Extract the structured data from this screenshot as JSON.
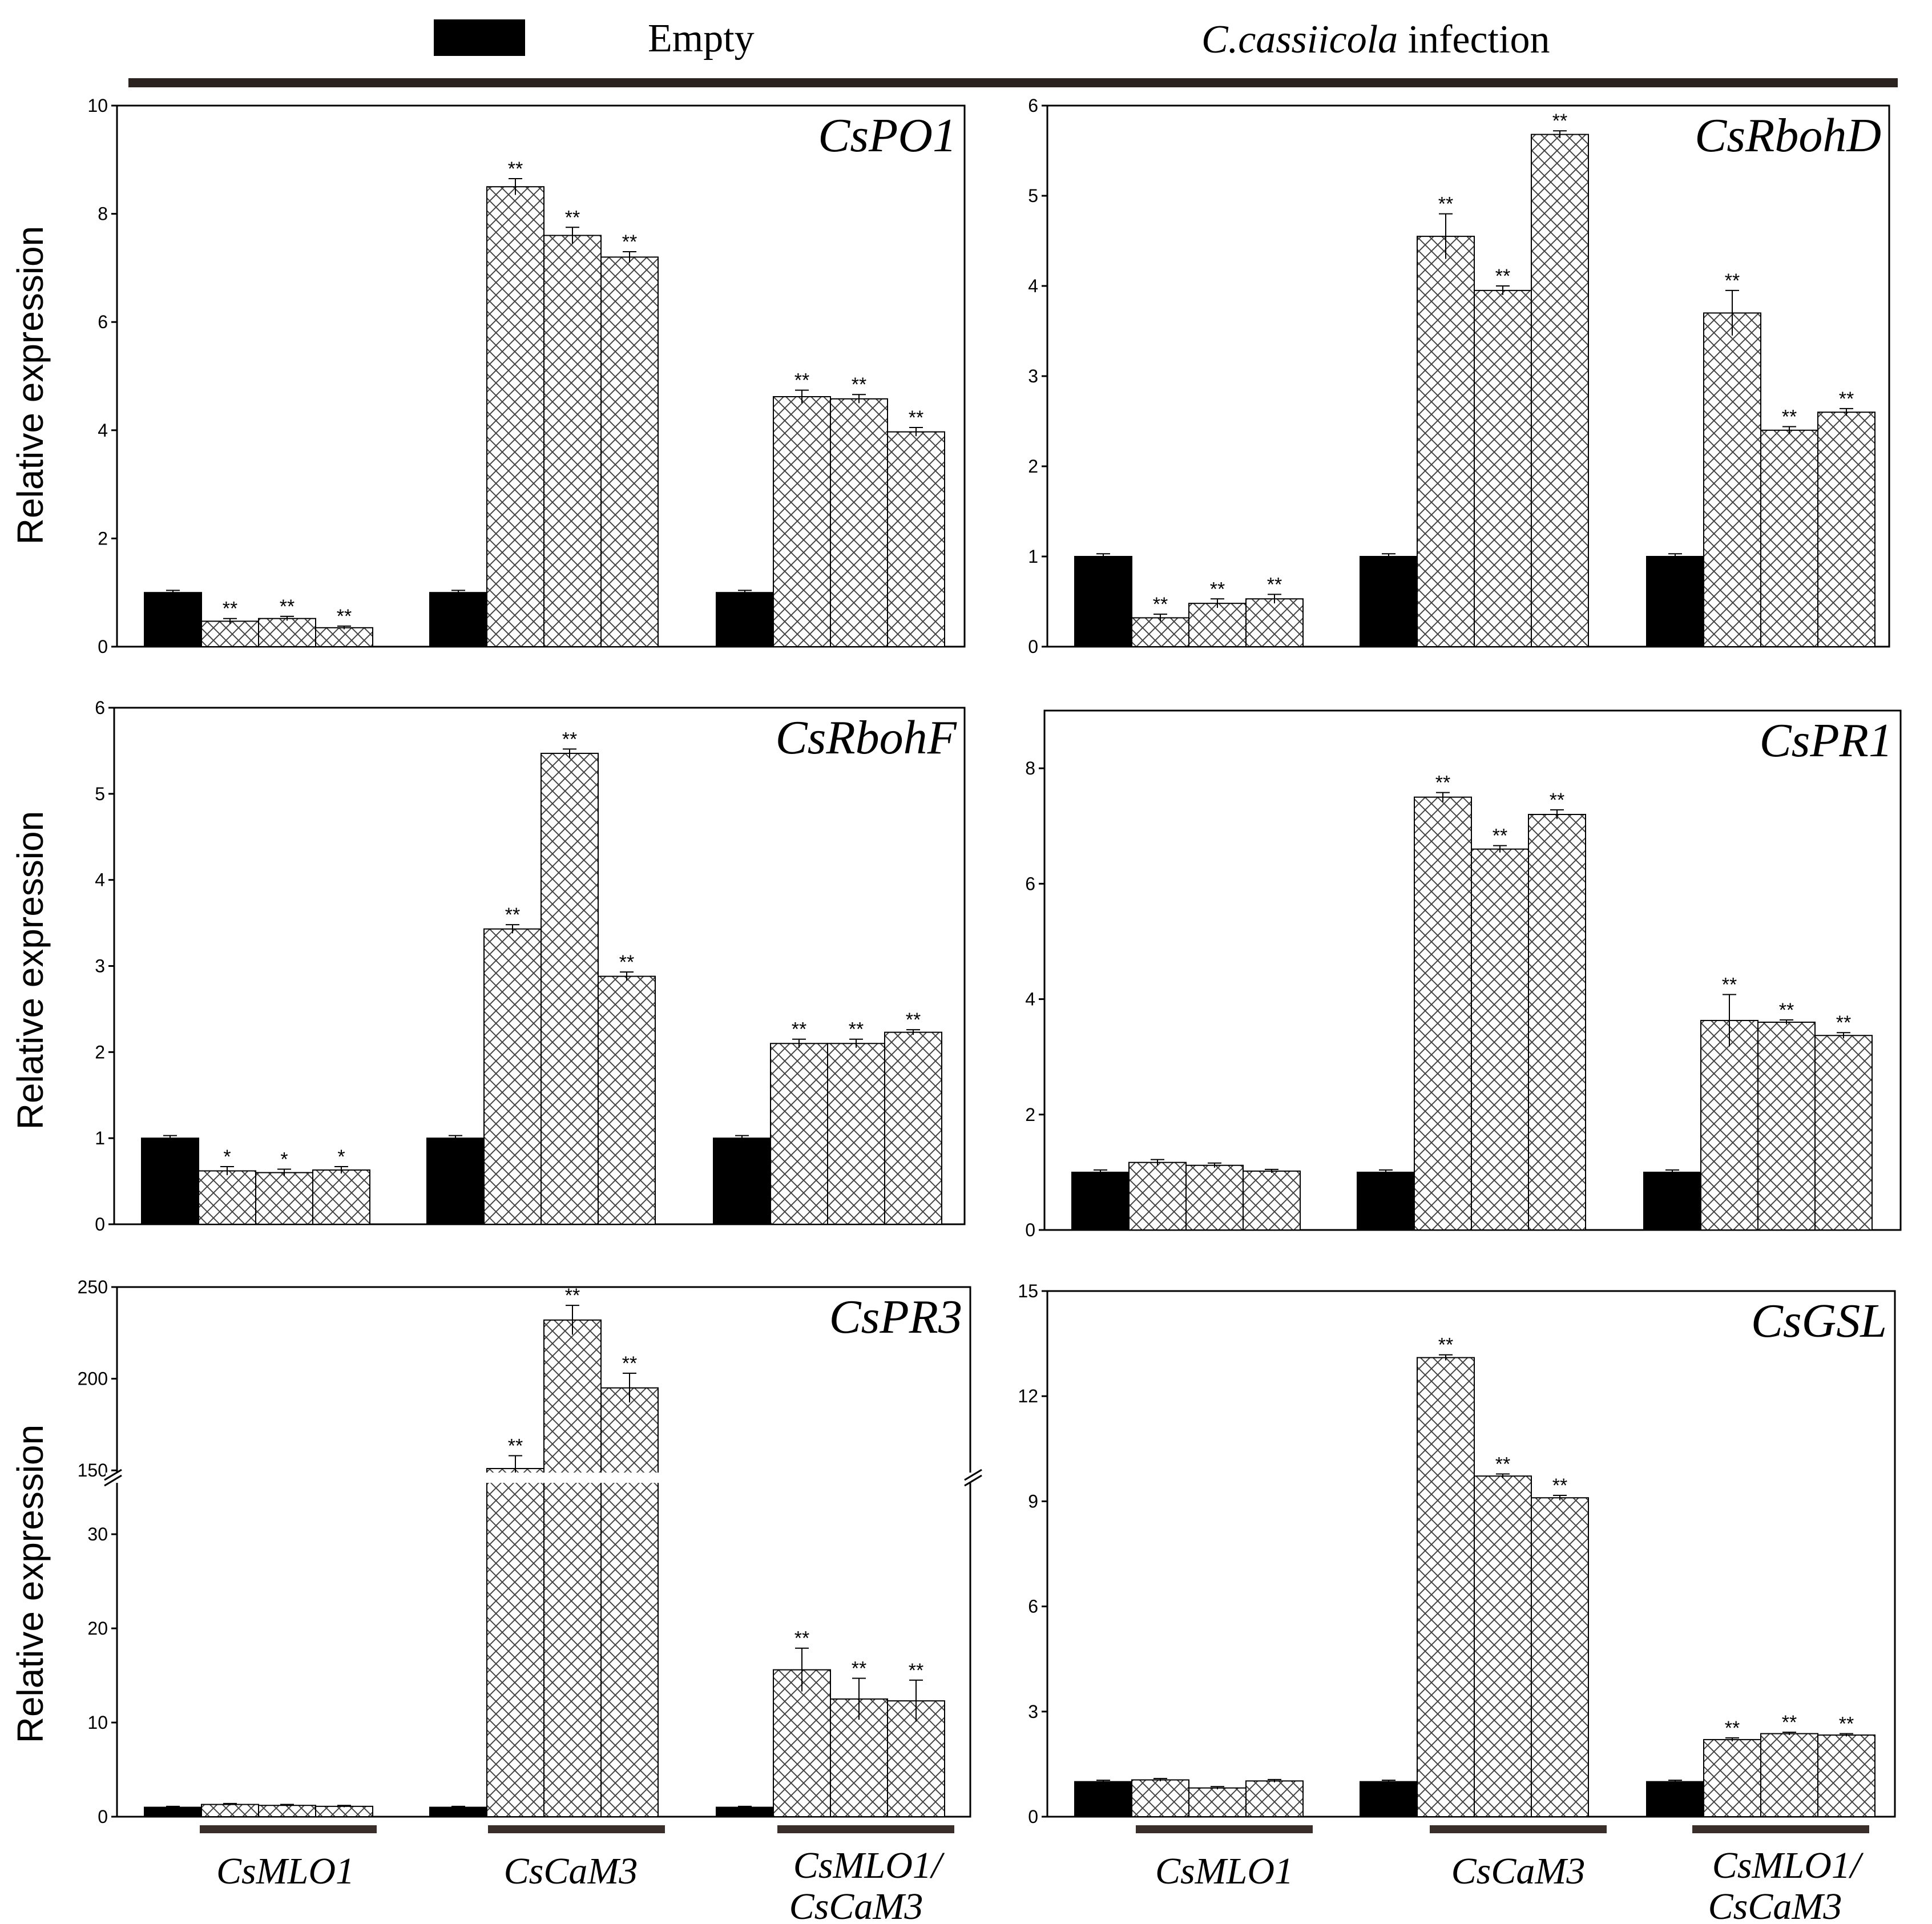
{
  "legend": {
    "empty_label": "Empty",
    "infection_prefix": "C.cassiicola",
    "infection_suffix": " infection",
    "empty_color": "#000000"
  },
  "ylabel": "Relative expression",
  "groups_left": [
    "CsMLO1",
    "CsCaM3",
    "CsMLO1/",
    "CsCaM3"
  ],
  "groups_right": [
    "CsMLO1",
    "CsCaM3",
    "CsMLO1/",
    "CsCaM3"
  ],
  "chart_data": [
    {
      "type": "bar",
      "title": "CsPO1",
      "ylim": [
        0,
        10
      ],
      "yticks": [
        "0",
        "2",
        "4",
        "6",
        "8",
        "10"
      ],
      "tick_values": [
        0,
        2,
        4,
        6,
        8,
        10
      ],
      "groups": [
        "CsMLO1",
        "CsCaM3",
        "CsMLO1/CsCaM3"
      ],
      "values": [
        [
          1.0,
          0.47,
          0.52,
          0.35
        ],
        [
          1.0,
          8.5,
          7.6,
          7.2
        ],
        [
          1.0,
          4.62,
          4.58,
          3.97
        ]
      ],
      "errors": [
        [
          0.04,
          0.05,
          0.04,
          0.03
        ],
        [
          0.04,
          0.15,
          0.15,
          0.1
        ],
        [
          0.04,
          0.12,
          0.08,
          0.08
        ]
      ],
      "stars": [
        [
          "",
          "**",
          "**",
          "**"
        ],
        [
          "",
          "**",
          "**",
          "**"
        ],
        [
          "",
          "**",
          "**",
          "**"
        ]
      ]
    },
    {
      "type": "bar",
      "title": "CsRbohD",
      "ylim": [
        0,
        6
      ],
      "yticks": [
        "0",
        "1",
        "2",
        "3",
        "4",
        "5",
        "6"
      ],
      "tick_values": [
        0,
        1,
        2,
        3,
        4,
        5,
        6
      ],
      "groups": [
        "CsMLO1",
        "CsCaM3",
        "CsMLO1/CsCaM3"
      ],
      "values": [
        [
          1.0,
          0.32,
          0.48,
          0.53
        ],
        [
          1.0,
          4.55,
          3.95,
          5.68
        ],
        [
          1.0,
          3.7,
          2.4,
          2.6
        ]
      ],
      "errors": [
        [
          0.03,
          0.04,
          0.05,
          0.05
        ],
        [
          0.03,
          0.25,
          0.05,
          0.04
        ],
        [
          0.03,
          0.25,
          0.04,
          0.04
        ]
      ],
      "stars": [
        [
          "",
          "**",
          "**",
          "**"
        ],
        [
          "",
          "**",
          "**",
          "**"
        ],
        [
          "",
          "**",
          "**",
          "**"
        ]
      ]
    },
    {
      "type": "bar",
      "title": "CsRbohF",
      "ylim": [
        0,
        6
      ],
      "yticks": [
        "0",
        "1",
        "2",
        "3",
        "4",
        "5",
        "6"
      ],
      "tick_values": [
        0,
        1,
        2,
        3,
        4,
        5,
        6
      ],
      "groups": [
        "CsMLO1",
        "CsCaM3",
        "CsMLO1/CsCaM3"
      ],
      "values": [
        [
          1.0,
          0.62,
          0.6,
          0.63
        ],
        [
          1.0,
          3.43,
          5.47,
          2.88
        ],
        [
          1.0,
          2.1,
          2.1,
          2.23
        ]
      ],
      "errors": [
        [
          0.03,
          0.05,
          0.04,
          0.04
        ],
        [
          0.03,
          0.05,
          0.05,
          0.05
        ],
        [
          0.03,
          0.05,
          0.05,
          0.03
        ]
      ],
      "stars": [
        [
          "",
          "*",
          "*",
          "*"
        ],
        [
          "",
          "**",
          "**",
          "**"
        ],
        [
          "",
          "**",
          "**",
          "**"
        ]
      ]
    },
    {
      "type": "bar",
      "title": "CsPR1",
      "ylim": [
        0,
        9
      ],
      "yticks": [
        "0",
        "2",
        "4",
        "6",
        "8"
      ],
      "tick_values": [
        0,
        2,
        4,
        6,
        8
      ],
      "groups": [
        "CsMLO1",
        "CsCaM3",
        "CsMLO1/CsCaM3"
      ],
      "values": [
        [
          1.0,
          1.17,
          1.12,
          1.02
        ],
        [
          1.0,
          7.5,
          6.6,
          7.2
        ],
        [
          1.0,
          3.63,
          3.6,
          3.37
        ]
      ],
      "errors": [
        [
          0.04,
          0.05,
          0.04,
          0.03
        ],
        [
          0.04,
          0.08,
          0.06,
          0.08
        ],
        [
          0.04,
          0.45,
          0.04,
          0.05
        ]
      ],
      "stars": [
        [
          "",
          "",
          "",
          ""
        ],
        [
          "",
          "**",
          "**",
          "**"
        ],
        [
          "",
          "**",
          "**",
          "**"
        ]
      ]
    },
    {
      "type": "bar",
      "title": "CsPR3",
      "axis_break": true,
      "yticks": [
        "0",
        "10",
        "20",
        "30",
        "150",
        "200",
        "250"
      ],
      "tick_values": [
        0,
        10,
        20,
        30,
        150,
        200,
        250
      ],
      "groups": [
        "CsMLO1",
        "CsCaM3",
        "CsMLO1/CsCaM3"
      ],
      "values": [
        [
          1.0,
          1.3,
          1.2,
          1.1
        ],
        [
          1.0,
          151,
          232,
          195
        ],
        [
          1.0,
          15.6,
          12.5,
          12.3
        ]
      ],
      "errors": [
        [
          0.1,
          0.1,
          0.1,
          0.1
        ],
        [
          0.1,
          7,
          8,
          8
        ],
        [
          0.1,
          2.3,
          2.2,
          2.2
        ]
      ],
      "stars": [
        [
          "",
          "",
          "",
          ""
        ],
        [
          "",
          "**",
          "**",
          "**"
        ],
        [
          "",
          "**",
          "**",
          "**"
        ]
      ]
    },
    {
      "type": "bar",
      "title": "CsGSL",
      "ylim": [
        0,
        15
      ],
      "yticks": [
        "0",
        "3",
        "6",
        "9",
        "12",
        "15"
      ],
      "tick_values": [
        0,
        3,
        6,
        9,
        12,
        15
      ],
      "groups": [
        "CsMLO1",
        "CsCaM3",
        "CsMLO1/CsCaM3"
      ],
      "values": [
        [
          1.0,
          1.05,
          0.82,
          1.02
        ],
        [
          1.0,
          13.1,
          9.72,
          9.1
        ],
        [
          1.0,
          2.2,
          2.37,
          2.33
        ]
      ],
      "errors": [
        [
          0.04,
          0.04,
          0.04,
          0.04
        ],
        [
          0.04,
          0.08,
          0.06,
          0.07
        ],
        [
          0.04,
          0.05,
          0.04,
          0.04
        ]
      ],
      "stars": [
        [
          "",
          "",
          "",
          ""
        ],
        [
          "",
          "**",
          "**",
          "**"
        ],
        [
          "",
          "**",
          "**",
          "**"
        ]
      ]
    }
  ]
}
